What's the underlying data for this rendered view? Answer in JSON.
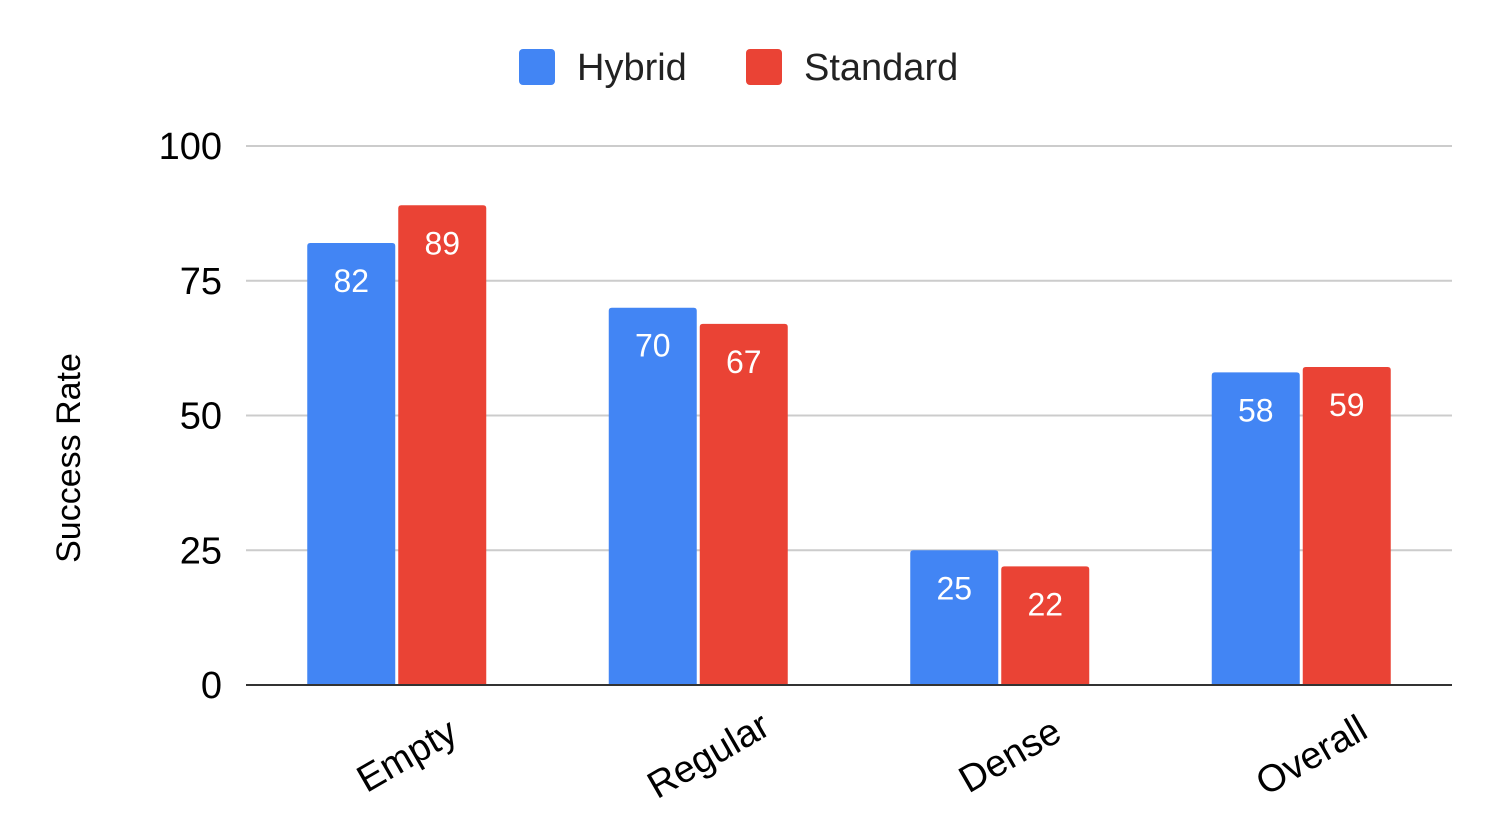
{
  "chart_data": {
    "type": "bar",
    "categories": [
      "Empty",
      "Regular",
      "Dense",
      "Overall"
    ],
    "series": [
      {
        "name": "Hybrid",
        "values": [
          82,
          70,
          25,
          58
        ],
        "color": "#4285F4"
      },
      {
        "name": "Standard",
        "values": [
          89,
          67,
          22,
          59
        ],
        "color": "#EA4335"
      }
    ],
    "title": "",
    "xlabel": "",
    "ylabel": "Success Rate",
    "ylim": [
      0,
      100
    ],
    "yticks": [
      0,
      25,
      50,
      75,
      100
    ],
    "grid": true,
    "legend": "top-center",
    "data_labels": true,
    "gridline_color": "#cccccc",
    "axis_color": "#333333"
  }
}
